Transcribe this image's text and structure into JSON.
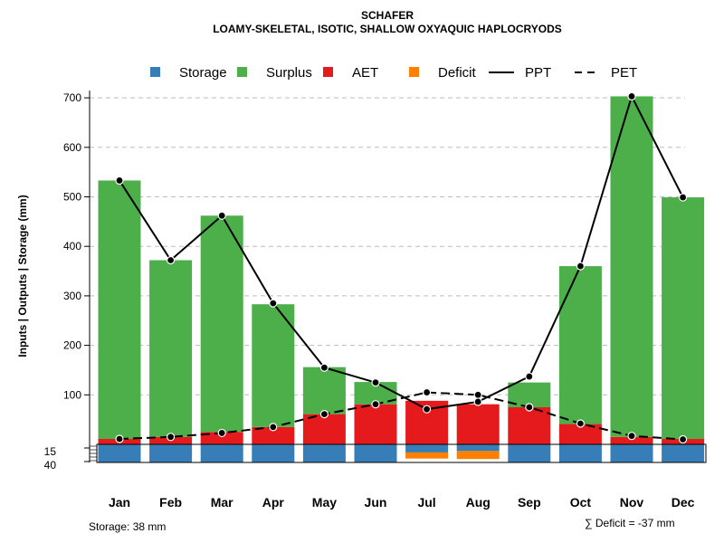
{
  "chart_data": {
    "type": "bar",
    "title": "SCHAFER",
    "subtitle": "LOAMY-SKELETAL, ISOTIC, SHALLOW OXYAQUIC HAPLOCRYODS",
    "ylabel": "Inputs | Outputs | Storage    (mm)",
    "xlabel": "",
    "ylim": [
      0,
      700
    ],
    "y_ticks": [
      100,
      200,
      300,
      400,
      500,
      600,
      700
    ],
    "y_ticks_below": [
      15,
      40
    ],
    "grid": true,
    "legend_position": "top",
    "categories": [
      "Jan",
      "Feb",
      "Mar",
      "Apr",
      "May",
      "Jun",
      "Jul",
      "Aug",
      "Sep",
      "Oct",
      "Nov",
      "Dec"
    ],
    "series": [
      {
        "name": "Storage",
        "type": "bar-below",
        "color": "#377EB8",
        "values": [
          38,
          38,
          38,
          38,
          38,
          38,
          17,
          14,
          38,
          38,
          38,
          38
        ]
      },
      {
        "name": "Surplus",
        "type": "bar",
        "color": "#4DAF4A",
        "values": [
          522,
          357,
          437,
          248,
          95,
          45,
          0,
          0,
          50,
          319,
          688,
          488
        ]
      },
      {
        "name": "AET",
        "type": "bar",
        "color": "#E41A1C",
        "values": [
          11,
          15,
          25,
          35,
          61,
          81,
          88,
          81,
          75,
          41,
          15,
          11
        ]
      },
      {
        "name": "Deficit",
        "type": "bar-below",
        "color": "#FF7F00",
        "values": [
          0,
          0,
          0,
          0,
          0,
          0,
          16,
          21,
          0,
          0,
          0,
          0
        ]
      },
      {
        "name": "PPT",
        "type": "line",
        "style": "solid",
        "color": "#000000",
        "values": [
          533,
          372,
          462,
          285,
          155,
          125,
          71,
          86,
          137,
          360,
          703,
          499
        ]
      },
      {
        "name": "PET",
        "type": "line",
        "style": "dashed",
        "color": "#000000",
        "values": [
          11,
          15,
          23,
          35,
          61,
          81,
          105,
          100,
          75,
          42,
          17,
          10
        ]
      }
    ]
  },
  "footer": {
    "storage_text": "Storage: 38 mm",
    "deficit_text": "∑ Deficit = -37 mm"
  }
}
